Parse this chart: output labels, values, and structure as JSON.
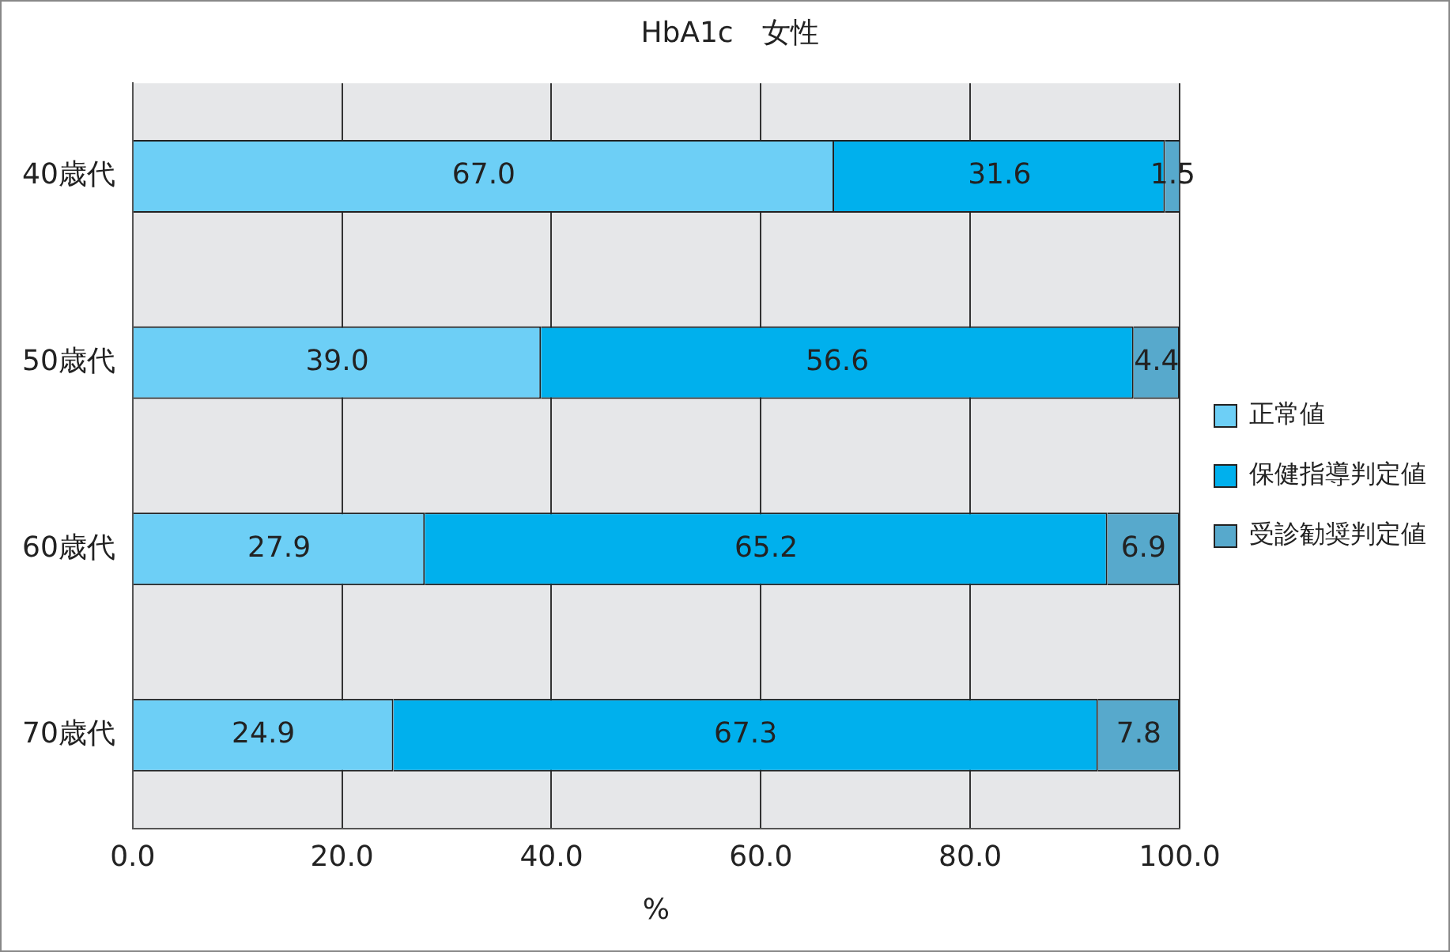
{
  "chart_data": {
    "type": "bar",
    "orientation": "horizontal",
    "stacked": true,
    "title": "HbA1c　女性",
    "xlabel": "%",
    "categories": [
      "40歳代",
      "50歳代",
      "60歳代",
      "70歳代"
    ],
    "series": [
      {
        "name": "正常値",
        "color": "#6dcff6",
        "values": [
          67.0,
          39.0,
          27.9,
          24.9
        ],
        "value_labels": [
          "67.0",
          "39.0",
          "27.9",
          "24.9"
        ]
      },
      {
        "name": "保健指導判定値",
        "color": "#00b0ed",
        "values": [
          31.6,
          56.6,
          65.2,
          67.3
        ],
        "value_labels": [
          "31.6",
          "56.6",
          "65.2",
          "67.3"
        ]
      },
      {
        "name": "受診勧奨判定値",
        "color": "#57a9cc",
        "values": [
          1.5,
          4.4,
          6.9,
          7.8
        ],
        "value_labels": [
          "1.5",
          "4.4",
          "6.9",
          "7.8"
        ]
      }
    ],
    "xlim": [
      0,
      100
    ],
    "xticks": [
      {
        "value": 0,
        "label": "0.0"
      },
      {
        "value": 20,
        "label": "20.0"
      },
      {
        "value": 40,
        "label": "40.0"
      },
      {
        "value": 60,
        "label": "60.0"
      },
      {
        "value": 80,
        "label": "80.0"
      },
      {
        "value": 100,
        "label": "100.0"
      }
    ],
    "grid": "x",
    "legend": "right"
  }
}
